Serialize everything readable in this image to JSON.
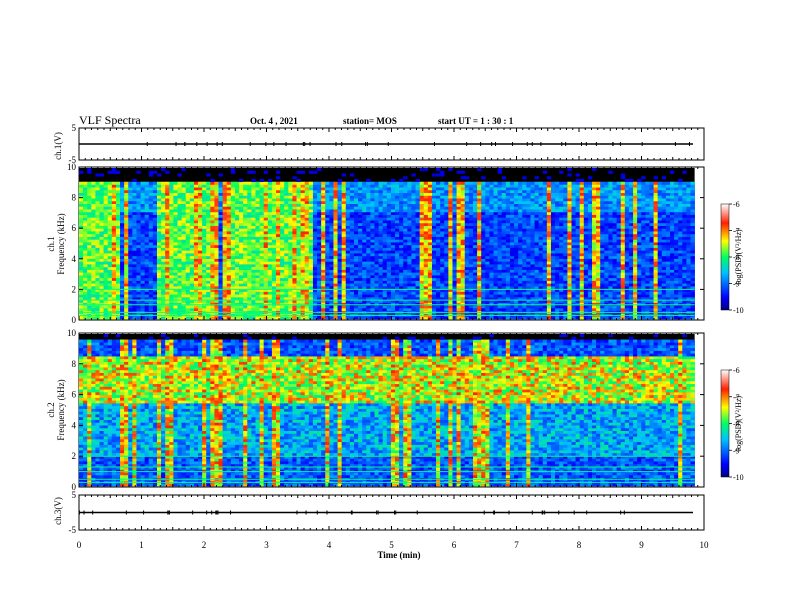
{
  "header": {
    "title": "VLF Spectra",
    "date": "Oct. 4 , 2021",
    "station": "station= MOS",
    "start_ut": "start  UT =   1 : 30 : 1"
  },
  "chart_data": [
    {
      "type": "line",
      "name": "ch1-waveform",
      "ylabel": "ch.1(V)",
      "ylim": [
        -5,
        5
      ],
      "y_ticks": [
        "5",
        "-5"
      ],
      "x": [
        0,
        10
      ],
      "values": [
        0,
        0
      ]
    },
    {
      "type": "heatmap",
      "name": "ch1-spectrogram",
      "ylabel": "ch.1\nFrequency (kHz)",
      "ylim": [
        0,
        10
      ],
      "y_ticks": [
        "0",
        "2",
        "4",
        "6",
        "8",
        "10"
      ],
      "xlim": [
        0,
        9.85
      ],
      "colorbar": {
        "label": "log(PSD)(V²/Hz)",
        "ticks": [
          "-6",
          "-7",
          "-8",
          "-9",
          "-10"
        ],
        "range": [
          -10,
          -6
        ]
      },
      "broadband_intervals_min": [
        [
          0,
          0.65
        ],
        [
          1.25,
          2.25
        ],
        [
          2.45,
          3.75
        ]
      ]
    },
    {
      "type": "heatmap",
      "name": "ch2-spectrogram",
      "ylabel": "ch.2\nFrequency (kHz)",
      "ylim": [
        0,
        10
      ],
      "y_ticks": [
        "0",
        "2",
        "4",
        "6",
        "8",
        "10"
      ],
      "xlim": [
        0,
        9.85
      ],
      "colorbar": {
        "label": "log(PSD)(V²/Hz)",
        "ticks": [
          "-6",
          "-7",
          "-8",
          "-9",
          "-10"
        ],
        "range": [
          -10,
          -6
        ]
      },
      "dominant_band_khz": [
        5.5,
        8.5
      ]
    },
    {
      "type": "line",
      "name": "ch3-waveform",
      "ylabel": "ch.3(V)",
      "ylim": [
        -5,
        5
      ],
      "y_ticks": [
        "5",
        "-5"
      ],
      "x": [
        0,
        10
      ],
      "values": [
        0,
        0
      ]
    }
  ],
  "x_axis": {
    "label": "Time  (min)",
    "ticks": [
      "0",
      "1",
      "2",
      "3",
      "4",
      "5",
      "6",
      "7",
      "8",
      "9",
      "10"
    ],
    "xlim": [
      0,
      10
    ]
  },
  "colors": {
    "background": "#000000",
    "line": "#000000"
  }
}
